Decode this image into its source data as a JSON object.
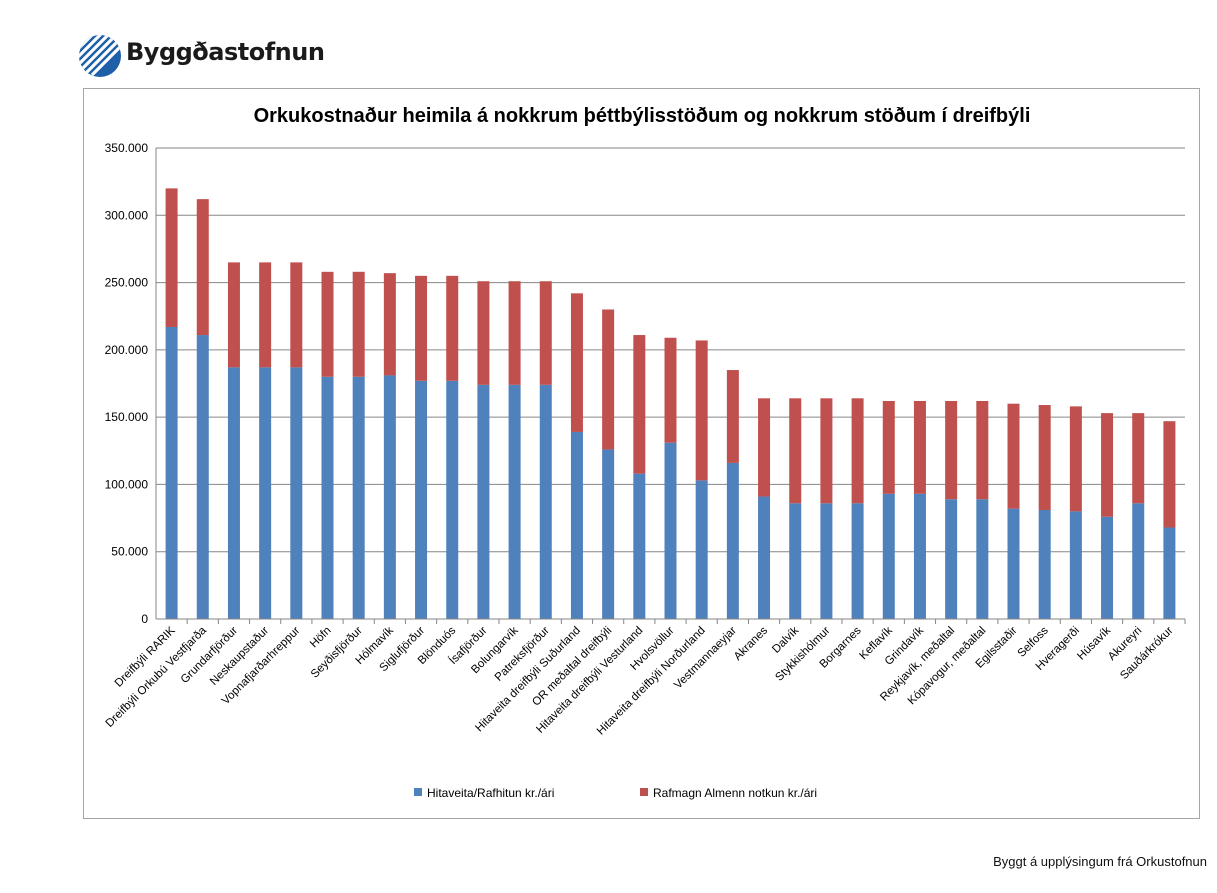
{
  "logo": {
    "text": "Byggðastofnun",
    "name": "byggdastofnun-logo"
  },
  "footer": {
    "credit": "Byggt á upplýsingum frá Orkustofnun"
  },
  "chart_data": {
    "type": "bar",
    "stacked": true,
    "title": "Orkukostnaður heimila á nokkrum þéttbýlisstöðum og nokkrum stöðum í dreifbýli",
    "xlabel": "",
    "ylabel": "",
    "ylim": [
      0,
      350000
    ],
    "yticks": [
      0,
      50000,
      100000,
      150000,
      200000,
      250000,
      300000,
      350000
    ],
    "ytick_labels": [
      "0",
      "50.000",
      "100.000",
      "150.000",
      "200.000",
      "250.000",
      "300.000",
      "350.000"
    ],
    "grid": true,
    "legend_position": "bottom",
    "categories": [
      "Dreifbýli RARIK",
      "Dreifbýli Orkubú Vestfjarða",
      "Grundarfjörður",
      "Neskaupstaður",
      "Vopnafjarðarhreppur",
      "Höfn",
      "Seyðisfjörður",
      "Hólmavík",
      "Siglufjörður",
      "Blönduós",
      "Ísafjörður",
      "Bolungarvík",
      "Patreksfjörður",
      "Hitaveita dreifbýli Suðurland",
      "OR meðaltal dreifbýli",
      "Hitaveita dreifbýli Vesturland",
      "Hvolsvöllur",
      "Hitaveita dreifbýli Norðurland",
      "Vestmannaeyjar",
      "Akranes",
      "Dalvík",
      "Stykkishólmur",
      "Borgarnes",
      "Keflavík",
      "Grindavík",
      "Reykjavík, meðaltal",
      "Kópavogur, meðaltal",
      "Egilsstaðir",
      "Selfoss",
      "Hveragerði",
      "Húsavík",
      "Akureyri",
      "Sauðárkrókur"
    ],
    "series": [
      {
        "name": "Hitaveita/Rafhitun kr./ári",
        "color": "#4f81bd",
        "values": [
          217000,
          211000,
          187000,
          187000,
          187000,
          180000,
          180000,
          181000,
          177000,
          177000,
          174000,
          174000,
          174000,
          139000,
          126000,
          108000,
          131000,
          103000,
          116000,
          91000,
          86000,
          86000,
          86000,
          93000,
          93000,
          89000,
          89000,
          82000,
          81000,
          80000,
          76000,
          86000,
          68000
        ]
      },
      {
        "name": "Rafmagn Almenn notkun kr./ári",
        "color": "#c0504d",
        "values": [
          103000,
          101000,
          78000,
          78000,
          78000,
          78000,
          78000,
          76000,
          78000,
          78000,
          77000,
          77000,
          77000,
          103000,
          104000,
          103000,
          78000,
          104000,
          69000,
          73000,
          78000,
          78000,
          78000,
          69000,
          69000,
          73000,
          73000,
          78000,
          78000,
          78000,
          77000,
          67000,
          79000
        ]
      }
    ]
  }
}
